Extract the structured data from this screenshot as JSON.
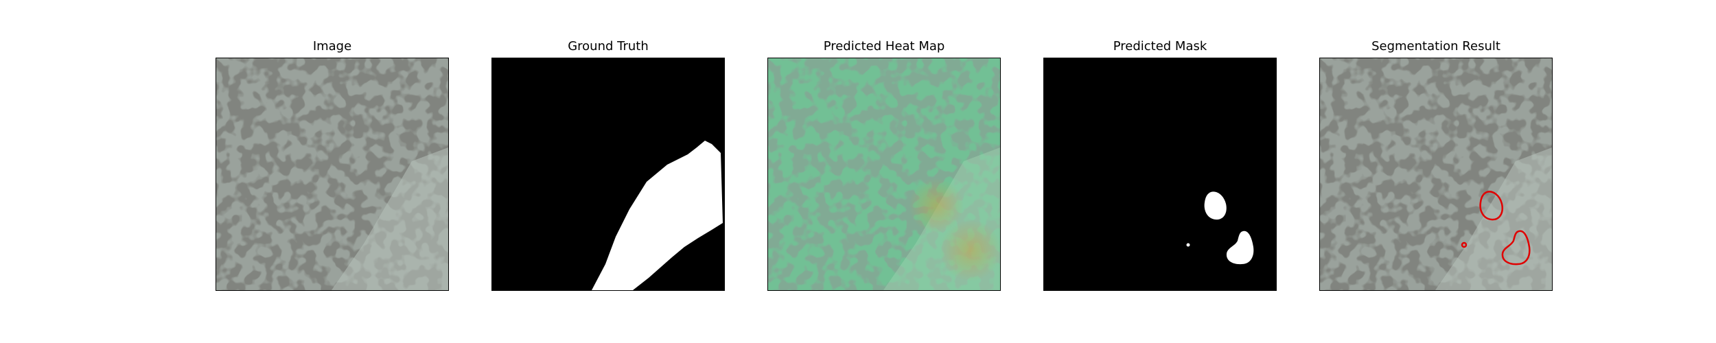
{
  "figure": {
    "panels": [
      {
        "id": "image",
        "title": "Image"
      },
      {
        "id": "ground-truth",
        "title": "Ground Truth"
      },
      {
        "id": "heatmap",
        "title": "Predicted Heat Map"
      },
      {
        "id": "mask",
        "title": "Predicted Mask"
      },
      {
        "id": "segmentation",
        "title": "Segmentation Result"
      }
    ],
    "colors": {
      "texture_base": "#9aa29c",
      "texture_spot": "#3a3c38",
      "defect_patch": "#b8c2bc",
      "mask_fg": "#ffffff",
      "mask_bg": "#000000",
      "heat_tint": "#6ed39a",
      "contour": "#e00000"
    }
  }
}
